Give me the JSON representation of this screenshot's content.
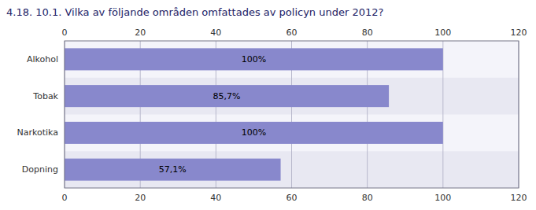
{
  "chart_data": {
    "type": "bar",
    "orientation": "horizontal",
    "title": "4.18. 10.1. Vilka av följande områden omfattades av policyn under 2012?",
    "categories": [
      "Alkohol",
      "Tobak",
      "Narkotika",
      "Dopning"
    ],
    "values": [
      100,
      85.7,
      100,
      57.1
    ],
    "value_labels": [
      "100%",
      "85,7%",
      "100%",
      "57,1%"
    ],
    "color": "#8888cc",
    "xlim": [
      0,
      120
    ],
    "xticks": [
      0,
      20,
      40,
      60,
      80,
      100,
      120
    ],
    "grid": true,
    "data_labels": true
  }
}
